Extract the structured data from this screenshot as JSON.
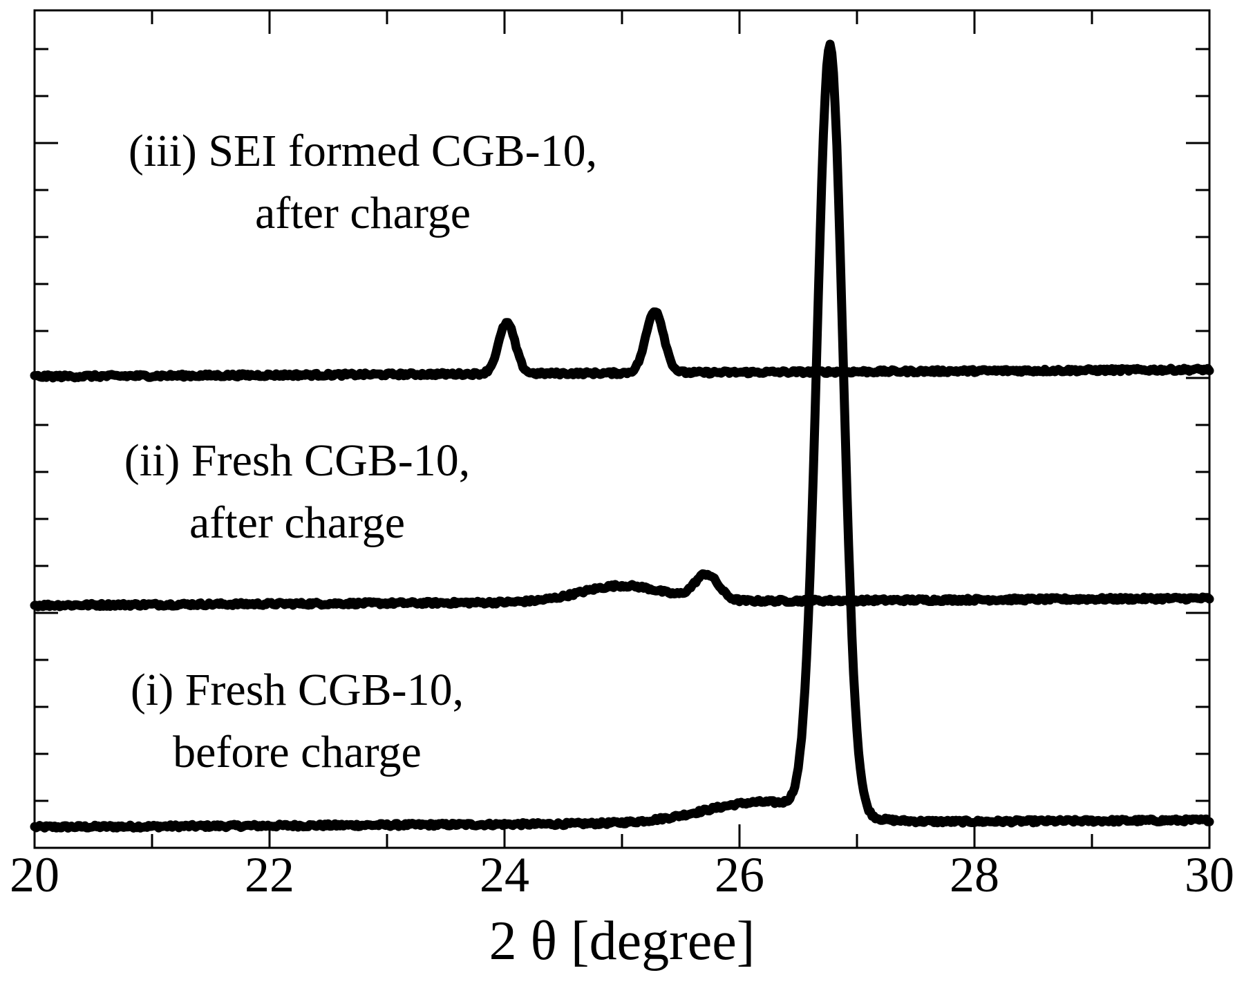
{
  "chart_data": {
    "type": "line",
    "title": "",
    "xlabel": "2 θ [degree]",
    "ylabel": "",
    "xlim": [
      20,
      30
    ],
    "ylim": [
      0,
      17
    ],
    "x_ticks": [
      "20",
      "22",
      "24",
      "26",
      "28",
      "30"
    ],
    "grid": false,
    "y_tick_labels_shown": false,
    "series": [
      {
        "label": [
          "(i) Fresh CGB-10,",
          "before charge"
        ],
        "baseline": 0.0,
        "drift": 0.15,
        "noise": 0.07,
        "peaks": [
          {
            "center": 26.77,
            "height": 16.6,
            "width": 0.11
          },
          {
            "center": 26.2,
            "height": 0.45,
            "width": 0.5
          }
        ]
      },
      {
        "label": [
          "(ii) Fresh CGB-10,",
          "after charge"
        ],
        "baseline": 4.8,
        "drift": 0.15,
        "noise": 0.07,
        "peaks": [
          {
            "center": 25.72,
            "height": 0.55,
            "width": 0.1
          },
          {
            "center": 25.0,
            "height": 0.35,
            "width": 0.35
          }
        ]
      },
      {
        "label": [
          "(iii) SEI formed CGB-10,",
          "after charge"
        ],
        "baseline": 9.75,
        "drift": 0.15,
        "noise": 0.07,
        "peaks": [
          {
            "center": 24.02,
            "height": 1.1,
            "width": 0.07
          },
          {
            "center": 25.28,
            "height": 1.35,
            "width": 0.075
          }
        ]
      }
    ]
  }
}
